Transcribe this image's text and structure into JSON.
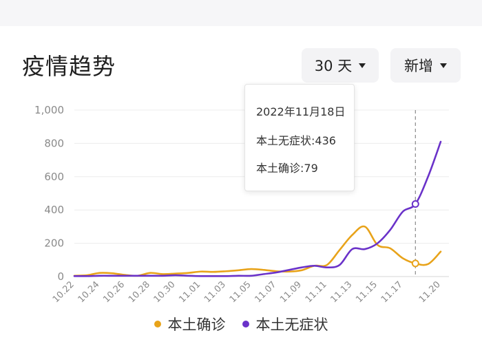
{
  "section": {
    "title": "疫情趋势"
  },
  "controls": {
    "range_label": "30 天",
    "metric_label": "新增"
  },
  "tooltip": {
    "date": "2022年11月18日",
    "line1": "本土无症状:436",
    "line2": "本土确诊:79"
  },
  "legend": [
    {
      "label": "本土确诊",
      "color": "#e8a31a"
    },
    {
      "label": "本土无症状",
      "color": "#6a32c9"
    }
  ],
  "chart_data": {
    "type": "line",
    "title": "",
    "xlabel": "",
    "ylabel": "",
    "ylim": [
      0,
      1000
    ],
    "yticks": [
      "0",
      "200",
      "400",
      "600",
      "800",
      "1,000"
    ],
    "xtick_labels": [
      "10.22",
      "10.24",
      "10.26",
      "10.28",
      "10.30",
      "11.01",
      "11.03",
      "11.05",
      "11.07",
      "11.09",
      "11.11",
      "11.13",
      "11.15",
      "11.17",
      "11.20"
    ],
    "categories": [
      "10.22",
      "10.23",
      "10.24",
      "10.25",
      "10.26",
      "10.27",
      "10.28",
      "10.29",
      "10.30",
      "10.31",
      "11.01",
      "11.02",
      "11.03",
      "11.04",
      "11.05",
      "11.06",
      "11.07",
      "11.08",
      "11.09",
      "11.10",
      "11.11",
      "11.12",
      "11.13",
      "11.14",
      "11.15",
      "11.16",
      "11.17",
      "11.18",
      "11.19",
      "11.20"
    ],
    "highlight_index": 27,
    "grid": true,
    "legend_position": "bottom",
    "series": [
      {
        "name": "本土确诊",
        "color": "#e8a31a",
        "values": [
          5,
          8,
          22,
          20,
          10,
          5,
          22,
          15,
          18,
          22,
          30,
          28,
          32,
          38,
          45,
          40,
          32,
          30,
          38,
          65,
          70,
          160,
          250,
          300,
          190,
          170,
          110,
          79,
          75,
          150
        ]
      },
      {
        "name": "本土无症状",
        "color": "#6a32c9",
        "values": [
          3,
          3,
          5,
          5,
          5,
          5,
          5,
          5,
          8,
          5,
          3,
          3,
          3,
          5,
          5,
          15,
          25,
          40,
          55,
          65,
          55,
          70,
          165,
          165,
          200,
          280,
          390,
          436,
          600,
          810
        ]
      }
    ]
  }
}
